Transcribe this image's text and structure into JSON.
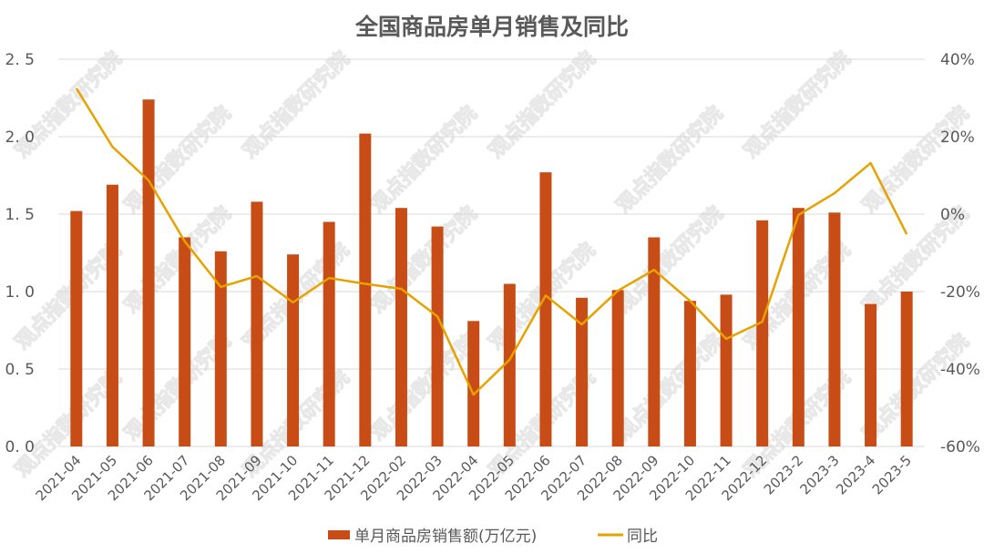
{
  "chart_data": {
    "type": "bar+line",
    "title": "全国商品房单月销售及同比",
    "categories": [
      "2021-04",
      "2021-05",
      "2021-06",
      "2021-07",
      "2021-08",
      "2021-09",
      "2021-10",
      "2021-11",
      "2021-12",
      "2022-02",
      "2022-03",
      "2022-04",
      "2022-05",
      "2022-06",
      "2022-07",
      "2022-08",
      "2022-09",
      "2022-10",
      "2022-11",
      "2022-12",
      "2023-2",
      "2023-3",
      "2023-4",
      "2023-5"
    ],
    "series": [
      {
        "name": "单月商品房销售额(万亿元)",
        "type": "bar",
        "axis": "left",
        "color": "#C84C16",
        "values": [
          1.52,
          1.69,
          2.24,
          1.35,
          1.26,
          1.58,
          1.24,
          1.45,
          2.02,
          1.54,
          1.42,
          0.81,
          1.05,
          1.77,
          0.96,
          1.01,
          1.35,
          0.94,
          0.98,
          1.46,
          1.54,
          1.51,
          0.92,
          1.0
        ]
      },
      {
        "name": "同比",
        "type": "line",
        "axis": "right",
        "color": "#E8A200",
        "values": [
          32.5,
          17.4,
          8.7,
          -7.0,
          -18.8,
          -16.0,
          -22.8,
          -16.5,
          -18.0,
          -19.3,
          -26.4,
          -46.6,
          -37.6,
          -21.0,
          -28.5,
          -19.8,
          -14.4,
          -22.4,
          -32.2,
          -27.8,
          -0.2,
          5.4,
          13.2,
          -5.2
        ]
      }
    ],
    "xlabel": "",
    "ylabel": "",
    "y_left": {
      "ylim": [
        0,
        2.5
      ],
      "ticks": [
        "0.0",
        "0.5",
        "1.0",
        "1.5",
        "2.0",
        "2.5"
      ]
    },
    "y_right": {
      "ylim": [
        -60,
        40
      ],
      "ticks": [
        "-60%",
        "-40%",
        "-20%",
        "0%",
        "20%",
        "40%"
      ]
    },
    "grid": true,
    "legend_position": "bottom"
  },
  "legend": {
    "bar_label": "单月商品房销售额(万亿元)",
    "line_label": "同比"
  },
  "watermark": "观点指数研究院"
}
